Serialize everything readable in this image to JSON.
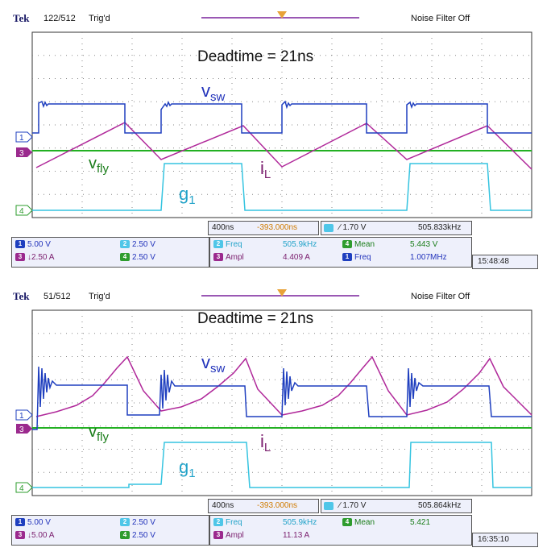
{
  "chart_data": [
    {
      "type": "line",
      "title": "Deadtime = 21ns",
      "header": {
        "brand": "Tek",
        "acquisition": "122/512",
        "trigger_state": "Trig'd",
        "noise_filter": "Noise Filter Off"
      },
      "time_scale": "400ns",
      "trigger_position": "-393.000ns",
      "trigger_readout": {
        "level": "∕ 1.70 V",
        "frequency": "505.833kHz"
      },
      "channels": [
        {
          "id": "1",
          "scale": "5.00 V"
        },
        {
          "id": "2",
          "scale": "2.50 V"
        },
        {
          "id": "3",
          "scale": "↓2.50 A"
        },
        {
          "id": "4",
          "scale": "2.50 V"
        }
      ],
      "measurements": [
        {
          "ch": "2",
          "label": "Freq",
          "value": "505.9kHz"
        },
        {
          "ch": "4",
          "label": "Mean",
          "value": "5.443 V"
        },
        {
          "ch": "3",
          "label": "Ampl",
          "value": "4.409 A"
        },
        {
          "ch": "1",
          "label": "Freq",
          "value": "1.007MHz"
        }
      ],
      "timestamp": "15:48:48",
      "annotations": {
        "vsw": "v",
        "vsw_sub": "sw",
        "vfly": "v",
        "vfly_sub": "fly",
        "il": "i",
        "il_sub": "L",
        "g1": "g",
        "g1_sub": "1"
      },
      "series": [
        {
          "name": "vsw",
          "channel": "1",
          "shape": "square switching node with ringing at rising edge"
        },
        {
          "name": "iL",
          "channel": "3",
          "shape": "triangular inductor current"
        },
        {
          "name": "vfly",
          "channel": "4-green",
          "shape": "flat DC level"
        },
        {
          "name": "g1",
          "channel": "2",
          "shape": "gate drive square wave"
        }
      ],
      "colors": {
        "vsw": "#1f3fbf",
        "iL": "#b0289a",
        "vfly": "#22b022",
        "g1": "#35c4e0"
      }
    },
    {
      "type": "line",
      "title": "Deadtime = 21ns",
      "header": {
        "brand": "Tek",
        "acquisition": "51/512",
        "trigger_state": "Trig'd",
        "noise_filter": "Noise Filter Off"
      },
      "time_scale": "400ns",
      "trigger_position": "-393.000ns",
      "trigger_readout": {
        "level": "∕ 1.70 V",
        "frequency": "505.864kHz"
      },
      "channels": [
        {
          "id": "1",
          "scale": "5.00 V"
        },
        {
          "id": "2",
          "scale": "2.50 V"
        },
        {
          "id": "3",
          "scale": "↓5.00 A"
        },
        {
          "id": "4",
          "scale": "2.50 V"
        }
      ],
      "measurements": [
        {
          "ch": "2",
          "label": "Freq",
          "value": "505.9kHz"
        },
        {
          "ch": "4",
          "label": "Mean",
          "value": "5.421"
        },
        {
          "ch": "3",
          "label": "Ampl",
          "value": "11.13 A"
        }
      ],
      "timestamp": "16:35:10",
      "annotations": {
        "vsw": "v",
        "vsw_sub": "sw",
        "vfly": "v",
        "vfly_sub": "fly",
        "il": "i",
        "il_sub": "L",
        "g1": "g",
        "g1_sub": "1"
      },
      "series": [
        {
          "name": "vsw",
          "channel": "1",
          "shape": "switching node with heavy ringing"
        },
        {
          "name": "iL",
          "channel": "3",
          "shape": "exponential-like rising current with sharp fall"
        },
        {
          "name": "vfly",
          "channel": "4-green",
          "shape": "flat DC level"
        },
        {
          "name": "g1",
          "channel": "2",
          "shape": "gate drive square wave"
        }
      ],
      "colors": {
        "vsw": "#1f3fbf",
        "iL": "#b0289a",
        "vfly": "#22b022",
        "g1": "#35c4e0"
      }
    }
  ]
}
